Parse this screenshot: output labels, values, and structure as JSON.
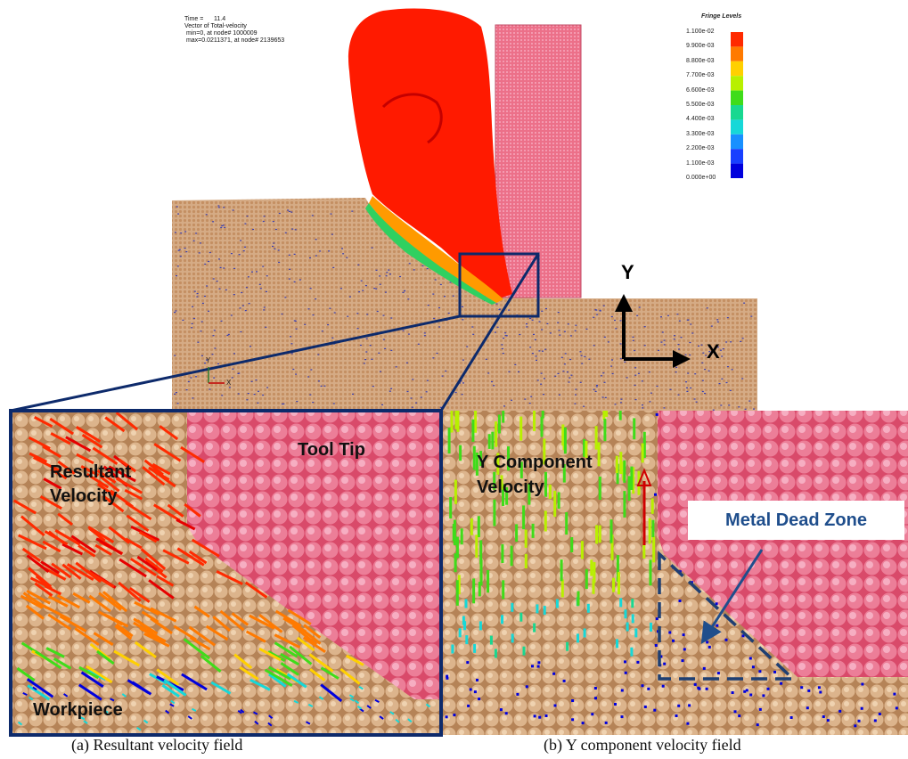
{
  "header": {
    "time_label": "Time =",
    "time_value": "11.4",
    "vector_of": "Vector of Total-velocity",
    "min_line": "min=0, at node# 1000009",
    "max_line": "max=0.0211371, at node# 2139653"
  },
  "legend": {
    "title": "Fringe Levels",
    "levels": [
      {
        "label": "1.100e-02",
        "color": "#e60000"
      },
      {
        "label": "9.900e-03",
        "color": "#ff2a00"
      },
      {
        "label": "8.800e-03",
        "color": "#ff7a00"
      },
      {
        "label": "7.700e-03",
        "color": "#ffd000"
      },
      {
        "label": "6.600e-03",
        "color": "#b8f000"
      },
      {
        "label": "5.500e-03",
        "color": "#3fdc1a"
      },
      {
        "label": "4.400e-03",
        "color": "#18d890"
      },
      {
        "label": "3.300e-03",
        "color": "#16d8d8"
      },
      {
        "label": "2.200e-03",
        "color": "#1890ff"
      },
      {
        "label": "1.100e-03",
        "color": "#1840ff"
      },
      {
        "label": "0.000e+00",
        "color": "#0000dd"
      }
    ]
  },
  "axes": {
    "y_label": "Y",
    "x_label": "X",
    "small_y": "Y",
    "small_x": "X"
  },
  "panel_a": {
    "resultant_velocity": "Resultant\nVelocity",
    "tool_tip": "Tool Tip",
    "workpiece": "Workpiece",
    "caption": "(a) Resultant velocity field"
  },
  "panel_b": {
    "y_component_velocity": "Y Component\nVelocity",
    "metal_dead_zone": "Metal Dead Zone",
    "caption": "(b) Y component velocity field"
  },
  "colors": {
    "tool": "#e8607a",
    "workpiece": "#d2a47a",
    "frame": "#0d2a6b",
    "callout_text": "#1f4e8c"
  }
}
